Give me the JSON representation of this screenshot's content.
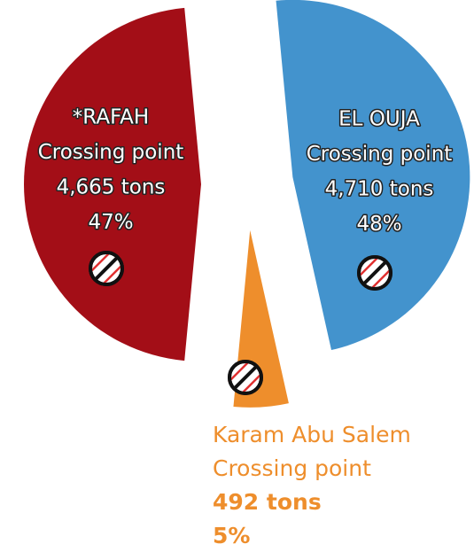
{
  "chart_data": {
    "type": "pie",
    "categories": [
      "*RAFAH",
      "EL OUJA",
      "Karam Abu Salem"
    ],
    "subtitles": [
      "Crossing point",
      "Crossing point",
      "Crossing point"
    ],
    "values": [
      47,
      48,
      5
    ],
    "value_labels": [
      "47%",
      "48%",
      "5%"
    ],
    "tons_labels": [
      "4,665 tons",
      "4,710 tons",
      "492 tons"
    ],
    "colors": [
      "#a30e17",
      "#4393cd",
      "#ee8e2c"
    ],
    "exploded": true
  }
}
